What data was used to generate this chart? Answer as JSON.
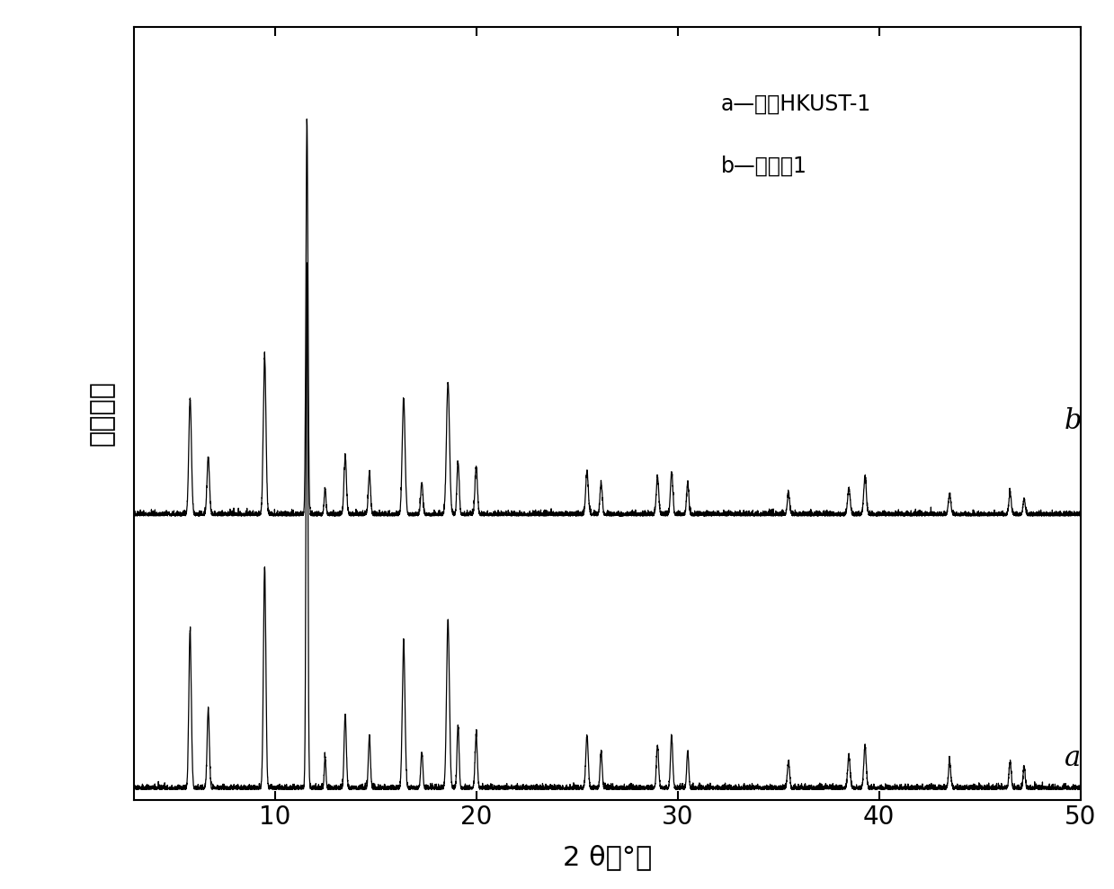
{
  "ylabel": "相对强度",
  "legend_line1": "a—传统HKUST-1",
  "legend_line2": "b—实施例1",
  "xlim": [
    3,
    50
  ],
  "line_color": "#000000",
  "background_color": "#ffffff",
  "label_a": "a",
  "label_b": "b",
  "xlabel": "2 θ（°）"
}
